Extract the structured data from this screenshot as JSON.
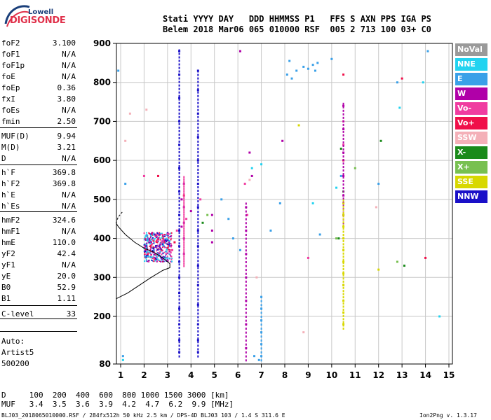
{
  "logo": {
    "top": "Lowell",
    "bottom": "DIGISONDE"
  },
  "header": {
    "line1": "Stati YYYY DAY   DDD HHMMSS P1   FFS S AXN PPS IGA PS",
    "line2": "Belem 2018 Mar06 065 010000 RSF  005 2 713 100 03+ C0"
  },
  "params": [
    {
      "name": "foF2",
      "value": "3.100"
    },
    {
      "name": "foF1",
      "value": "N/A"
    },
    {
      "name": "foF1p",
      "value": "N/A"
    },
    {
      "name": "foE",
      "value": "N/A"
    },
    {
      "name": "foEp",
      "value": "0.36"
    },
    {
      "name": "fxI",
      "value": "3.80"
    },
    {
      "name": "foEs",
      "value": "N/A"
    },
    {
      "name": "fmin",
      "value": "2.50"
    },
    {
      "name": "MUF(D)",
      "value": "9.94"
    },
    {
      "name": "M(D)",
      "value": "3.21"
    },
    {
      "name": "D",
      "value": "N/A"
    },
    {
      "name": "h`F",
      "value": "369.8"
    },
    {
      "name": "h`F2",
      "value": "369.8"
    },
    {
      "name": "h`E",
      "value": "N/A"
    },
    {
      "name": "h`Es",
      "value": "N/A"
    },
    {
      "name": "hmF2",
      "value": "324.6"
    },
    {
      "name": "hmF1",
      "value": "N/A"
    },
    {
      "name": "hmE",
      "value": "110.0"
    },
    {
      "name": "yF2",
      "value": "42.4"
    },
    {
      "name": "yF1",
      "value": "N/A"
    },
    {
      "name": "yE",
      "value": "20.0"
    },
    {
      "name": "B0",
      "value": "52.9"
    },
    {
      "name": "B1",
      "value": "1.11"
    },
    {
      "name": "C-level",
      "value": "33"
    }
  ],
  "auto": {
    "line1": "Auto:",
    "line2": "Artist5",
    "line3": "500200"
  },
  "legend": [
    {
      "label": "NoVal",
      "color": "#9a9a9a"
    },
    {
      "label": "NNE",
      "color": "#22d3f0"
    },
    {
      "label": "E",
      "color": "#3aa0e8"
    },
    {
      "label": "W",
      "color": "#b000a8"
    },
    {
      "label": "Vo-",
      "color": "#f03ca0"
    },
    {
      "label": "Vo+",
      "color": "#f0104a"
    },
    {
      "label": "SSW",
      "color": "#f4b0b8"
    },
    {
      "label": "X-",
      "color": "#1a8a1a"
    },
    {
      "label": "X+",
      "color": "#78c050"
    },
    {
      "label": "SSE",
      "color": "#d8d800"
    },
    {
      "label": "NNW",
      "color": "#1a10c8"
    }
  ],
  "muf_table": {
    "line1": "D     100  200  400  600  800 1000 1500 3000 [km]",
    "line2": "MUF   3.4  3.5  3.6  3.9  4.2  4.7  6.2  9.9 [MHz]"
  },
  "footer": {
    "left": "BLJ03_2018065010000.RSF / 284fx512h 50 kHz 2.5 km / DPS-4D BLJ03 103 / 1.4 S 311.6 E",
    "right": "Ion2Png v. 1.3.17"
  },
  "chart_data": {
    "type": "scatter",
    "title": "",
    "xlabel": "",
    "ylabel": "",
    "xlim": [
      0.8,
      15
    ],
    "ylim": [
      80,
      900
    ],
    "x_ticks": [
      1,
      2,
      3,
      4,
      5,
      6,
      7,
      8,
      9,
      10,
      11,
      12,
      13,
      14,
      15
    ],
    "y_ticks": [
      80,
      200,
      300,
      400,
      500,
      600,
      700,
      800,
      900
    ],
    "grid": true,
    "legend_position": "right",
    "series": [
      {
        "name": "NNW",
        "points": [
          [
            3.5,
            880
          ],
          [
            3.5,
            820
          ],
          [
            3.5,
            760
          ],
          [
            3.5,
            700
          ],
          [
            3.5,
            640
          ],
          [
            3.5,
            580
          ],
          [
            3.5,
            520
          ],
          [
            3.5,
            460
          ],
          [
            3.5,
            420
          ],
          [
            3.5,
            380
          ],
          [
            3.5,
            340
          ],
          [
            3.5,
            300
          ],
          [
            3.5,
            260
          ],
          [
            3.5,
            220
          ],
          [
            3.5,
            180
          ],
          [
            3.5,
            140
          ],
          [
            3.5,
            110
          ],
          [
            4.3,
            830
          ],
          [
            4.3,
            780
          ],
          [
            4.3,
            720
          ],
          [
            4.3,
            660
          ],
          [
            4.3,
            600
          ],
          [
            4.3,
            540
          ],
          [
            4.3,
            480
          ],
          [
            4.3,
            420
          ],
          [
            4.3,
            380
          ],
          [
            4.3,
            330
          ],
          [
            4.3,
            280
          ],
          [
            4.3,
            230
          ],
          [
            4.3,
            180
          ],
          [
            4.3,
            140
          ],
          [
            4.3,
            110
          ],
          [
            2.1,
            380
          ],
          [
            2.4,
            375
          ],
          [
            2.8,
            385
          ]
        ]
      },
      {
        "name": "W",
        "points": [
          [
            3.7,
            540
          ],
          [
            3.7,
            480
          ],
          [
            3.7,
            440
          ],
          [
            3.7,
            400
          ],
          [
            3.7,
            360
          ],
          [
            3.6,
            500
          ],
          [
            3.6,
            430
          ],
          [
            6.35,
            480
          ],
          [
            6.35,
            420
          ],
          [
            6.35,
            360
          ],
          [
            6.35,
            300
          ],
          [
            6.35,
            240
          ],
          [
            6.35,
            180
          ],
          [
            6.35,
            120
          ],
          [
            10.5,
            740
          ],
          [
            10.5,
            680
          ],
          [
            10.5,
            620
          ],
          [
            10.5,
            560
          ],
          [
            10.5,
            510
          ],
          [
            10.5,
            460
          ],
          [
            4.9,
            460
          ],
          [
            4.9,
            420
          ],
          [
            4.9,
            390
          ],
          [
            2.3,
            390
          ],
          [
            2.6,
            400
          ],
          [
            2.9,
            395
          ],
          [
            3.1,
            380
          ],
          [
            4.0,
            470
          ],
          [
            6.1,
            880
          ],
          [
            6.5,
            620
          ],
          [
            6.6,
            560
          ],
          [
            7.9,
            650
          ]
        ]
      },
      {
        "name": "Vo-",
        "points": [
          [
            2.2,
            390
          ],
          [
            2.5,
            405
          ],
          [
            2.7,
            385
          ],
          [
            3.0,
            410
          ],
          [
            3.2,
            370
          ],
          [
            3.4,
            420
          ],
          [
            3.8,
            450
          ],
          [
            4.4,
            500
          ],
          [
            6.3,
            540
          ],
          [
            6.4,
            460
          ],
          [
            10.5,
            700
          ],
          [
            10.5,
            640
          ],
          [
            9.0,
            350
          ],
          [
            2.0,
            560
          ]
        ]
      },
      {
        "name": "Vo+",
        "points": [
          [
            2.4,
            395
          ],
          [
            2.8,
            400
          ],
          [
            3.0,
            375
          ],
          [
            3.3,
            390
          ],
          [
            3.7,
            510
          ],
          [
            10.5,
            820
          ],
          [
            10.5,
            600
          ],
          [
            2.6,
            560
          ],
          [
            13.0,
            810
          ],
          [
            14.0,
            350
          ]
        ]
      },
      {
        "name": "E",
        "points": [
          [
            8.1,
            820
          ],
          [
            8.3,
            810
          ],
          [
            8.5,
            830
          ],
          [
            8.8,
            840
          ],
          [
            9.0,
            835
          ],
          [
            9.2,
            845
          ],
          [
            9.3,
            830
          ],
          [
            8.2,
            855
          ],
          [
            9.4,
            850
          ],
          [
            10.0,
            860
          ],
          [
            7.0,
            250
          ],
          [
            7.0,
            220
          ],
          [
            7.0,
            190
          ],
          [
            7.0,
            160
          ],
          [
            7.0,
            130
          ],
          [
            7.0,
            100
          ],
          [
            6.7,
            100
          ],
          [
            6.9,
            90
          ],
          [
            5.3,
            500
          ],
          [
            5.6,
            450
          ],
          [
            5.8,
            400
          ],
          [
            6.1,
            370
          ],
          [
            7.4,
            420
          ],
          [
            7.8,
            490
          ],
          [
            9.5,
            410
          ],
          [
            10.4,
            560
          ],
          [
            12.8,
            800
          ],
          [
            14.1,
            880
          ],
          [
            0.9,
            830
          ],
          [
            1.2,
            540
          ],
          [
            1.1,
            100
          ],
          [
            12.0,
            540
          ]
        ]
      },
      {
        "name": "NNE",
        "points": [
          [
            6.6,
            580
          ],
          [
            7.0,
            590
          ],
          [
            9.2,
            490
          ],
          [
            10.2,
            530
          ],
          [
            12.9,
            735
          ],
          [
            13.9,
            800
          ],
          [
            14.6,
            200
          ],
          [
            1.1,
            90
          ]
        ]
      },
      {
        "name": "SSE",
        "points": [
          [
            10.5,
            490
          ],
          [
            10.5,
            460
          ],
          [
            10.5,
            430
          ],
          [
            10.5,
            400
          ],
          [
            10.5,
            370
          ],
          [
            10.5,
            340
          ],
          [
            10.5,
            310
          ],
          [
            10.5,
            280
          ],
          [
            10.5,
            240
          ],
          [
            10.5,
            210
          ],
          [
            10.5,
            180
          ],
          [
            12.0,
            320
          ],
          [
            8.6,
            690
          ]
        ]
      },
      {
        "name": "X-",
        "points": [
          [
            10.4,
            630
          ],
          [
            10.5,
            520
          ],
          [
            13.1,
            330
          ],
          [
            10.3,
            400
          ],
          [
            12.1,
            650
          ],
          [
            4.5,
            440
          ]
        ]
      },
      {
        "name": "X+",
        "points": [
          [
            10.2,
            400
          ],
          [
            12.8,
            340
          ],
          [
            11.0,
            580
          ],
          [
            4.7,
            460
          ]
        ]
      },
      {
        "name": "SSW",
        "points": [
          [
            1.2,
            650
          ],
          [
            1.4,
            720
          ],
          [
            2.1,
            730
          ],
          [
            6.5,
            550
          ],
          [
            6.8,
            300
          ],
          [
            8.8,
            160
          ],
          [
            11.9,
            480
          ]
        ]
      }
    ],
    "overlay_curve": {
      "name": "profile",
      "points": [
        [
          0.8,
          245
        ],
        [
          1.3,
          260
        ],
        [
          1.8,
          280
        ],
        [
          2.3,
          300
        ],
        [
          2.8,
          318
        ],
        [
          3.1,
          325
        ],
        [
          3.1,
          335
        ],
        [
          2.8,
          350
        ],
        [
          2.4,
          365
        ],
        [
          2.0,
          375
        ],
        [
          1.6,
          390
        ],
        [
          1.2,
          410
        ],
        [
          0.9,
          430
        ],
        [
          0.8,
          440
        ]
      ]
    }
  }
}
